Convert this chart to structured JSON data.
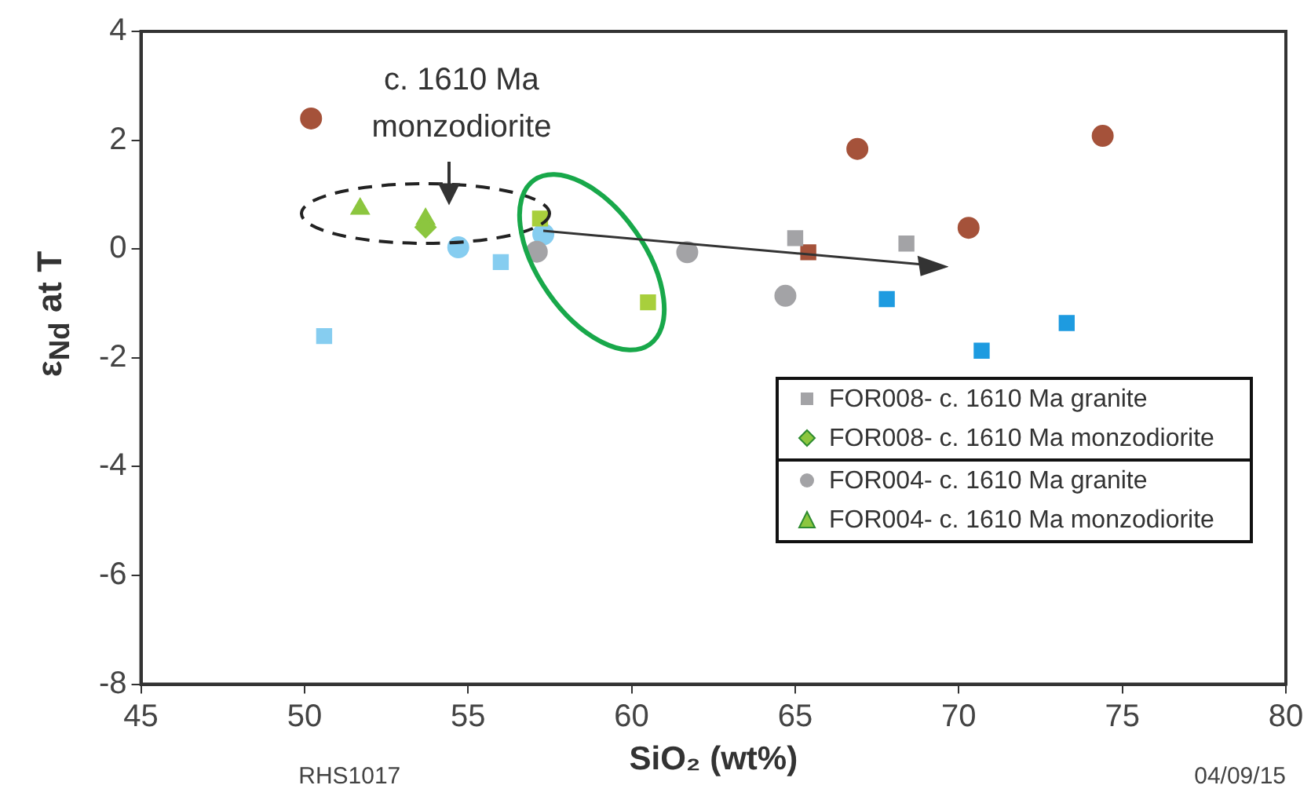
{
  "chart_data": {
    "type": "scatter",
    "xlabel": "SiO₂ (wt%)",
    "ylabel": "ε$_{Nd}$ at T",
    "annotations": [
      "c. 1610 Ma monzodiorite",
      "RHS1017",
      "04/09/15"
    ],
    "xlim": [
      45,
      80
    ],
    "xticks": [
      45,
      50,
      55,
      60,
      65,
      70,
      75,
      80
    ],
    "ylim": [
      -8,
      4
    ],
    "yticks": [
      -8,
      -6,
      -4,
      -2,
      0,
      2,
      4
    ],
    "grid": false,
    "legend": "bottom right",
    "series": [
      {
        "name": "FOR008- c. 1610 Ma granite",
        "color": "#a3a3a6",
        "marker": "square",
        "x": [
          65.0,
          68.4
        ],
        "values": [
          0.2,
          0.1
        ]
      },
      {
        "name": "FOR008- c. 1610 Ma monzodiorite",
        "color": "#8cc63f",
        "marker": "diamond",
        "x": [
          53.7
        ],
        "values": [
          0.4
        ]
      },
      {
        "name": "FOR004- c. 1610 Ma granite",
        "color": "#a3a3a6",
        "marker": "circle",
        "x": [
          57.1,
          61.7,
          64.7
        ],
        "values": [
          -0.05,
          -0.06,
          -0.86
        ]
      },
      {
        "name": "FOR004- c. 1610 Ma monzodiorite",
        "color": "#8cc63f",
        "marker": "triangle",
        "x": [
          51.7,
          53.7
        ],
        "values": [
          0.74,
          0.55
        ]
      },
      {
        "color": "#a5523a",
        "marker": "circle",
        "x": [
          50.2,
          66.9,
          74.4,
          70.3
        ],
        "values": [
          2.4,
          1.84,
          2.08,
          0.39
        ]
      },
      {
        "color": "#a5523a",
        "marker": "square",
        "x": [
          65.4
        ],
        "values": [
          -0.06
        ]
      },
      {
        "color": "#a8cf3c",
        "marker": "square",
        "x": [
          57.2,
          60.5
        ],
        "values": [
          0.56,
          -0.98
        ]
      },
      {
        "color": "#86cdf0",
        "marker": "circle",
        "x": [
          54.7,
          57.3
        ],
        "values": [
          0.03,
          0.27
        ]
      },
      {
        "color": "#86cdf0",
        "marker": "square",
        "x": [
          50.6,
          56.0
        ],
        "values": [
          -1.6,
          -0.24
        ]
      },
      {
        "color": "#1e9be0",
        "marker": "square",
        "x": [
          67.8,
          70.7,
          73.3
        ],
        "values": [
          -0.92,
          -1.87,
          -1.36
        ]
      }
    ]
  }
}
